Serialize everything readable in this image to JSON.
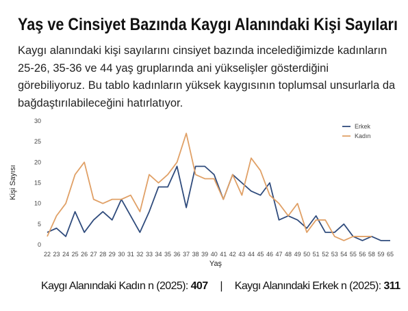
{
  "chart_data": {
    "type": "line",
    "title": "Yaş ve Cinsiyet Bazında Kaygı Alanındaki Kişi Sayıları",
    "subtitle": "Kaygı alanındaki kişi sayılarını cinsiyet bazında incelediğimizde kadınların 25-26, 35-36 ve 44 yaş gruplarında ani yükselişler gösterdiğini görebiliyoruz. Bu tablo kadınların yüksek kaygısının toplumsal unsurlarla da bağdaştırılabileceğini hatırlatıyor.",
    "x_label": "Yaş",
    "y_label": "Kişi Sayısı",
    "categories": [
      "22",
      "23",
      "24",
      "25",
      "26",
      "27",
      "28",
      "29",
      "30",
      "31",
      "32",
      "33",
      "34",
      "35",
      "36",
      "37",
      "38",
      "39",
      "40",
      "41",
      "42",
      "43",
      "44",
      "45",
      "46",
      "47",
      "48",
      "49",
      "50",
      "51",
      "52",
      "53",
      "54",
      "55",
      "56",
      "58",
      "59",
      "65"
    ],
    "series": [
      {
        "name": "Erkek",
        "color": "#2f4b7c",
        "values": [
          3,
          4,
          2,
          8,
          3,
          6,
          8,
          6,
          11,
          7,
          3,
          8,
          14,
          14,
          19,
          9,
          19,
          19,
          17,
          11,
          17,
          15,
          13,
          12,
          15,
          6,
          7,
          6,
          4,
          7,
          3,
          3,
          5,
          2,
          1,
          2,
          1,
          1
        ]
      },
      {
        "name": "Kadın",
        "color": "#e0a066",
        "values": [
          2,
          7,
          10,
          17,
          20,
          11,
          10,
          11,
          11,
          12,
          8,
          17,
          15,
          17,
          20,
          27,
          17,
          16,
          16,
          11,
          17,
          12,
          21,
          18,
          12,
          10,
          7,
          10,
          3,
          6,
          6,
          2,
          1,
          2,
          2,
          2,
          null,
          null
        ]
      }
    ],
    "ylim": [
      0,
      30
    ],
    "yticks": [
      0,
      5,
      10,
      15,
      20,
      25,
      30
    ],
    "grid": false,
    "legend": "upper right",
    "footer": [
      {
        "label": "Kaygı Alanındaki Kadın n (2025):",
        "value": 407
      },
      {
        "label": "Kaygı Alanındaki Erkek n (2025):",
        "value": 311
      }
    ],
    "footer_separator": "|"
  }
}
